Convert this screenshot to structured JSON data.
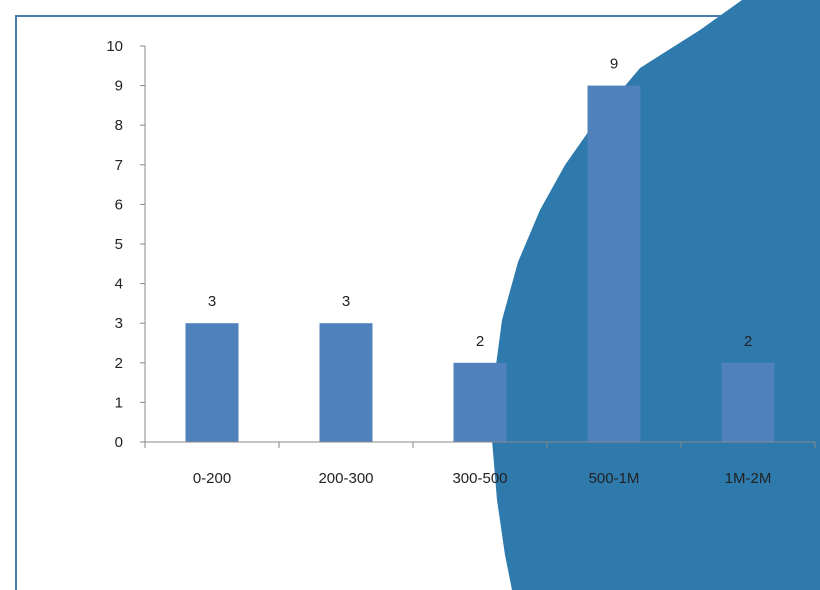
{
  "chart_data": {
    "type": "bar",
    "categories": [
      "0-200",
      "200-300",
      "300-500",
      "500-1M",
      "1M-2M"
    ],
    "values": [
      3,
      3,
      2,
      9,
      2
    ],
    "title": "",
    "xlabel": "",
    "ylabel": "",
    "ylim": [
      0,
      10
    ],
    "yticks": [
      "0",
      "1",
      "2",
      "3",
      "4",
      "5",
      "6",
      "7",
      "8",
      "9",
      "10"
    ],
    "data_labels": [
      "3",
      "3",
      "2",
      "9",
      "2"
    ],
    "grid": false,
    "legend": "none",
    "colors": {
      "bar": "#4f81bd",
      "axis": "#888888",
      "frame": "#4a7ab0",
      "overlay": "#2e7aad"
    }
  }
}
